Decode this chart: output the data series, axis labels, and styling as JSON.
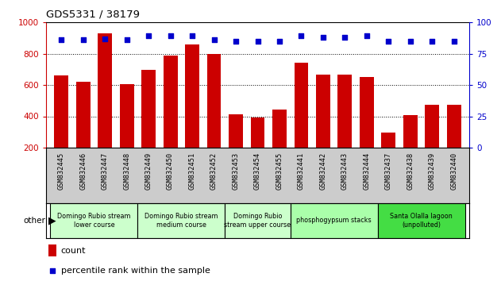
{
  "title": "GDS5331 / 38179",
  "categories": [
    "GSM832445",
    "GSM832446",
    "GSM832447",
    "GSM832448",
    "GSM832449",
    "GSM832450",
    "GSM832451",
    "GSM832452",
    "GSM832453",
    "GSM832454",
    "GSM832455",
    "GSM832441",
    "GSM832442",
    "GSM832443",
    "GSM832444",
    "GSM832437",
    "GSM832438",
    "GSM832439",
    "GSM832440"
  ],
  "counts": [
    660,
    620,
    930,
    605,
    695,
    785,
    860,
    800,
    415,
    390,
    445,
    740,
    665,
    665,
    650,
    295,
    410,
    475,
    475
  ],
  "percentiles": [
    86,
    86,
    87,
    86,
    89,
    89,
    89,
    86,
    85,
    85,
    85,
    89,
    88,
    88,
    89,
    85,
    85,
    85,
    85
  ],
  "groups": [
    {
      "label": "Domingo Rubio stream\nlower course",
      "start": 0,
      "end": 4,
      "color": "#ccffcc"
    },
    {
      "label": "Domingo Rubio stream\nmedium course",
      "start": 4,
      "end": 8,
      "color": "#ccffcc"
    },
    {
      "label": "Domingo Rubio\nstream upper course",
      "start": 8,
      "end": 11,
      "color": "#ccffcc"
    },
    {
      "label": "phosphogypsum stacks",
      "start": 11,
      "end": 15,
      "color": "#aaffaa"
    },
    {
      "label": "Santa Olalla lagoon\n(unpolluted)",
      "start": 15,
      "end": 19,
      "color": "#44dd44"
    }
  ],
  "bar_color": "#cc0000",
  "percentile_color": "#0000cc",
  "ylim_left": [
    200,
    1000
  ],
  "ylim_right": [
    0,
    100
  ],
  "yticks_left": [
    200,
    400,
    600,
    800,
    1000
  ],
  "yticks_right": [
    0,
    25,
    50,
    75,
    100
  ],
  "tick_area_color": "#cccccc",
  "fig_width": 6.31,
  "fig_height": 3.54,
  "dpi": 100
}
